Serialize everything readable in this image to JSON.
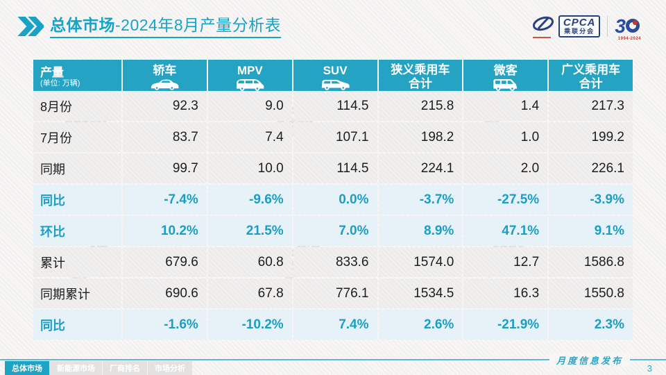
{
  "slide": {
    "title_bold": "总体市场",
    "title_rest": "-2024年8月产量分析表",
    "footer_note": "月度信息发布",
    "page_number": "3"
  },
  "logos": {
    "cpca_word": "CPCA",
    "cpca_sub": "乘联分会",
    "anniversary_number": "3",
    "anniversary_years": "1994-2024"
  },
  "watermark": {
    "text": "CPCA",
    "sub": "乘联分会"
  },
  "table": {
    "columns": [
      {
        "key": "category",
        "label": "产量",
        "sub": "(单位: 万辆)",
        "icon": null
      },
      {
        "key": "sedan",
        "label": "轿车",
        "icon": "sedan-icon"
      },
      {
        "key": "mpv",
        "label": "MPV",
        "icon": "mpv-icon"
      },
      {
        "key": "suv",
        "label": "SUV",
        "icon": "suv-icon"
      },
      {
        "key": "narrow-pv-total",
        "label": "狭义乘用车",
        "label2": "合计",
        "icon": null
      },
      {
        "key": "microvan",
        "label": "微客",
        "icon": "van-icon"
      },
      {
        "key": "broad-pv-total",
        "label": "广义乘用车",
        "label2": "合计",
        "icon": null
      }
    ],
    "rows": [
      {
        "label": "8月份",
        "type": "normal",
        "values": [
          "92.3",
          "9.0",
          "114.5",
          "215.8",
          "1.4",
          "217.3"
        ]
      },
      {
        "label": "7月份",
        "type": "normal",
        "values": [
          "83.7",
          "7.4",
          "107.1",
          "198.2",
          "1.0",
          "199.2"
        ]
      },
      {
        "label": "同期",
        "type": "normal",
        "values": [
          "99.7",
          "10.0",
          "114.5",
          "224.1",
          "2.0",
          "226.1"
        ]
      },
      {
        "label": "同比",
        "type": "percent",
        "values": [
          "-7.4%",
          "-9.6%",
          "0.0%",
          "-3.7%",
          "-27.5%",
          "-3.9%"
        ]
      },
      {
        "label": "环比",
        "type": "percent",
        "values": [
          "10.2%",
          "21.5%",
          "7.0%",
          "8.9%",
          "47.1%",
          "9.1%"
        ]
      },
      {
        "label": "累计",
        "type": "normal",
        "values": [
          "679.6",
          "60.8",
          "833.6",
          "1574.0",
          "12.7",
          "1586.8"
        ]
      },
      {
        "label": "同期累计",
        "type": "normal",
        "values": [
          "690.6",
          "67.8",
          "776.1",
          "1534.5",
          "16.3",
          "1550.8"
        ]
      },
      {
        "label": "同比",
        "type": "percent",
        "values": [
          "-1.6%",
          "-10.2%",
          "7.4%",
          "2.6%",
          "-21.9%",
          "2.3%"
        ]
      }
    ]
  },
  "footer_tabs": [
    {
      "label": "总体市场",
      "active": true
    },
    {
      "label": "新能源市场",
      "active": false
    },
    {
      "label": "厂商排名",
      "active": false
    },
    {
      "label": "市场分析",
      "active": false
    }
  ],
  "colors": {
    "accent": "#18A2C6",
    "header_bg": "#25A3C3",
    "percent_row_bg": "#E7F2F8",
    "row_bg": "#EDECEB",
    "percent_text": "#1B9EC6"
  },
  "chart_data": {
    "type": "table",
    "title": "总体市场-2024年8月产量分析表",
    "unit": "万辆",
    "categories": [
      "轿车",
      "MPV",
      "SUV",
      "狭义乘用车合计",
      "微客",
      "广义乘用车合计"
    ],
    "series": [
      {
        "name": "8月份",
        "values": [
          92.3,
          9.0,
          114.5,
          215.8,
          1.4,
          217.3
        ]
      },
      {
        "name": "7月份",
        "values": [
          83.7,
          7.4,
          107.1,
          198.2,
          1.0,
          199.2
        ]
      },
      {
        "name": "同期",
        "values": [
          99.7,
          10.0,
          114.5,
          224.1,
          2.0,
          226.1
        ]
      },
      {
        "name": "同比",
        "values": [
          "-7.4%",
          "-9.6%",
          "0.0%",
          "-3.7%",
          "-27.5%",
          "-3.9%"
        ]
      },
      {
        "name": "环比",
        "values": [
          "10.2%",
          "21.5%",
          "7.0%",
          "8.9%",
          "47.1%",
          "9.1%"
        ]
      },
      {
        "name": "累计",
        "values": [
          679.6,
          60.8,
          833.6,
          1574.0,
          12.7,
          1586.8
        ]
      },
      {
        "name": "同期累计",
        "values": [
          690.6,
          67.8,
          776.1,
          1534.5,
          16.3,
          1550.8
        ]
      },
      {
        "name": "同比(累计)",
        "values": [
          "-1.6%",
          "-10.2%",
          "7.4%",
          "2.6%",
          "-21.9%",
          "2.3%"
        ]
      }
    ]
  }
}
